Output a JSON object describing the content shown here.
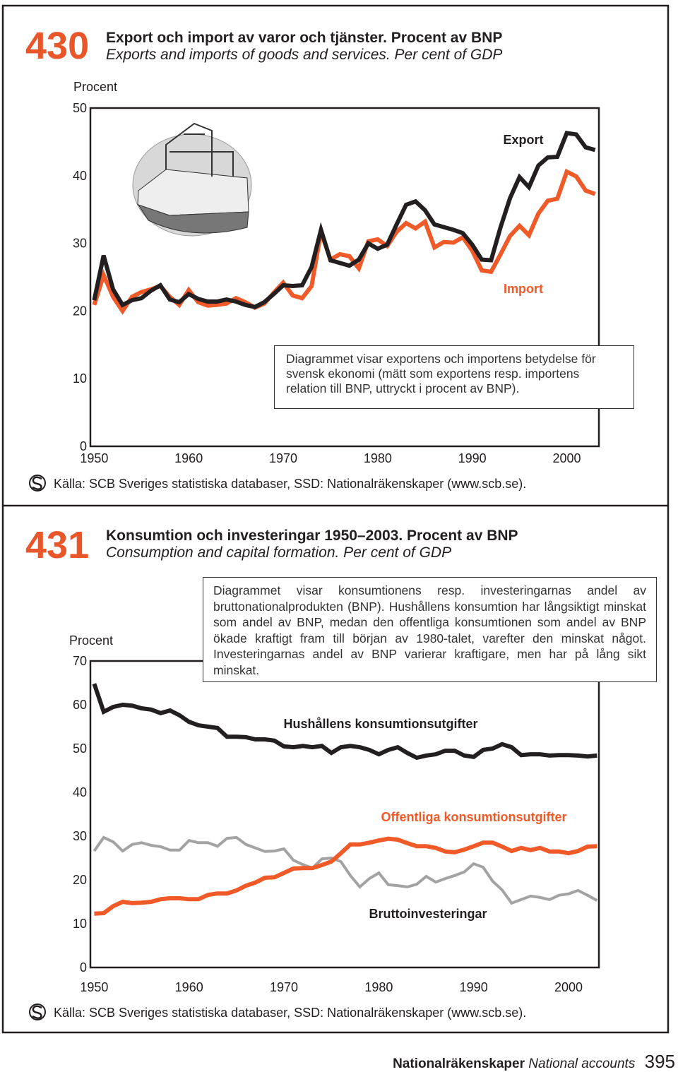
{
  "figures": [
    {
      "number": "430",
      "source": "Källa: SCB Sveriges statistiska databaser, SSD: Nationalräkenskaper (www.scb.se)."
    },
    {
      "number": "431",
      "source": "Källa: SCB Sveriges statistiska databaser, SSD: Nationalräkenskaper (www.scb.se)."
    }
  ],
  "chart_data": [
    {
      "type": "line",
      "title": "Export och import av varor och tjänster. Procent av BNP",
      "subtitle": "Exports and imports of goods and services. Per cent of GDP",
      "y_label": "Procent",
      "annotation": "Diagrammet visar exportens och importens betydelse för svensk ekonomi (mätt som exportens resp. importens relation till BNP, uttryckt i procent av BNP).",
      "x": [
        1950,
        1951,
        1952,
        1953,
        1954,
        1955,
        1956,
        1957,
        1958,
        1959,
        1960,
        1961,
        1962,
        1963,
        1964,
        1965,
        1966,
        1967,
        1968,
        1969,
        1970,
        1971,
        1972,
        1973,
        1974,
        1975,
        1976,
        1977,
        1978,
        1979,
        1980,
        1981,
        1982,
        1983,
        1984,
        1985,
        1986,
        1987,
        1988,
        1989,
        1990,
        1991,
        1992,
        1993,
        1994,
        1995,
        1996,
        1997,
        1998,
        1999,
        2000,
        2001,
        2002,
        2003
      ],
      "xlim": [
        1949.6,
        2003.4
      ],
      "xticks": [
        1950,
        1960,
        1970,
        1980,
        1990,
        2000
      ],
      "ylim": [
        0,
        50
      ],
      "yticks": [
        0,
        10,
        20,
        30,
        40,
        50
      ],
      "series": [
        {
          "name": "Export",
          "color": "#231f20",
          "values": [
            21.6,
            28.2,
            23.2,
            20.9,
            21.6,
            21.9,
            23.0,
            23.8,
            21.7,
            21.3,
            22.5,
            21.8,
            21.4,
            21.4,
            21.7,
            21.4,
            20.9,
            20.6,
            21.3,
            22.5,
            23.8,
            23.7,
            23.8,
            26.5,
            32.0,
            27.5,
            27.1,
            26.7,
            27.6,
            30.0,
            29.2,
            29.8,
            32.8,
            35.7,
            36.2,
            34.9,
            32.8,
            32.4,
            32.0,
            31.5,
            29.8,
            27.6,
            27.5,
            32.4,
            36.7,
            39.8,
            38.3,
            41.5,
            42.7,
            42.8,
            46.3,
            46.1,
            44.2,
            43.8
          ]
        },
        {
          "name": "Import",
          "color": "#f05a28",
          "values": [
            20.9,
            25.3,
            22.1,
            20.0,
            22.1,
            22.8,
            23.2,
            23.7,
            22.1,
            20.9,
            23.1,
            21.3,
            20.8,
            20.9,
            21.1,
            21.9,
            21.3,
            20.5,
            21.1,
            22.7,
            24.2,
            22.3,
            21.9,
            23.7,
            31.7,
            27.6,
            28.4,
            28.1,
            26.3,
            30.3,
            30.6,
            29.6,
            31.7,
            33.0,
            32.2,
            33.2,
            29.4,
            30.2,
            30.1,
            30.9,
            28.9,
            26.0,
            25.8,
            28.4,
            31.1,
            32.6,
            31.2,
            34.4,
            36.3,
            36.6,
            40.6,
            39.9,
            37.8,
            37.3
          ]
        }
      ]
    },
    {
      "type": "line",
      "title": "Konsumtion och investeringar 1950–2003. Procent av BNP",
      "subtitle": "Consumption and capital formation. Per cent of GDP",
      "y_label": "Procent",
      "annotation": "Diagrammet visar konsumtionens resp. investeringarnas andel av bruttonationalprodukten (BNP). Hushållens konsumtion har långsiktigt minskat som andel av BNP, medan den offentliga konsumtionen som andel av BNP ökade kraftigt fram till början av 1980-talet, varefter den minskat något. Investeringarnas andel av BNP varierar kraftigare, men har på lång sikt minskat.",
      "x": [
        1950,
        1951,
        1952,
        1953,
        1954,
        1955,
        1956,
        1957,
        1958,
        1959,
        1960,
        1961,
        1962,
        1963,
        1964,
        1965,
        1966,
        1967,
        1968,
        1969,
        1970,
        1971,
        1972,
        1973,
        1974,
        1975,
        1976,
        1977,
        1978,
        1979,
        1980,
        1981,
        1982,
        1983,
        1984,
        1985,
        1986,
        1987,
        1988,
        1989,
        1990,
        1991,
        1992,
        1993,
        1994,
        1995,
        1996,
        1997,
        1998,
        1999,
        2000,
        2001,
        2002,
        2003
      ],
      "xlim": [
        1949.6,
        2003.2
      ],
      "xticks": [
        1950,
        1960,
        1970,
        1980,
        1990,
        2000
      ],
      "ylim": [
        0,
        70
      ],
      "yticks": [
        0,
        10,
        20,
        30,
        40,
        50,
        60,
        70
      ],
      "series": [
        {
          "name": "Hushållens konsumtionsutgifter",
          "color": "#231f20",
          "values": [
            64.8,
            58.4,
            59.5,
            60.0,
            59.8,
            59.2,
            58.9,
            58.1,
            58.7,
            57.6,
            56.1,
            55.3,
            55.0,
            54.7,
            52.7,
            52.7,
            52.6,
            52.1,
            52.1,
            51.8,
            50.5,
            50.3,
            50.6,
            50.3,
            50.6,
            49.0,
            50.3,
            50.6,
            50.3,
            49.7,
            48.7,
            49.7,
            50.3,
            49.0,
            47.9,
            48.4,
            48.7,
            49.5,
            49.5,
            48.4,
            48.1,
            49.7,
            50.0,
            51.0,
            50.3,
            48.5,
            48.7,
            48.7,
            48.4,
            48.5,
            48.5,
            48.4,
            48.2,
            48.4
          ]
        },
        {
          "name": "Offentliga konsumtionsutgifter",
          "color": "#f05a28",
          "values": [
            12.3,
            12.4,
            14.0,
            15.0,
            14.7,
            14.8,
            15.0,
            15.6,
            15.8,
            15.8,
            15.6,
            15.6,
            16.6,
            16.9,
            16.9,
            17.6,
            18.7,
            19.4,
            20.5,
            20.6,
            21.6,
            22.6,
            22.7,
            22.7,
            23.4,
            24.2,
            26.1,
            28.1,
            28.1,
            28.5,
            29.0,
            29.4,
            29.2,
            28.4,
            27.7,
            27.7,
            27.3,
            26.5,
            26.3,
            26.9,
            27.7,
            28.5,
            28.5,
            27.6,
            26.6,
            27.3,
            26.8,
            27.3,
            26.5,
            26.5,
            26.1,
            26.6,
            27.6,
            27.7
          ]
        },
        {
          "name": "Bruttoinvesteringar",
          "color": "#a3a3a3",
          "values": [
            26.6,
            29.7,
            28.7,
            26.6,
            28.1,
            28.5,
            27.9,
            27.6,
            26.8,
            26.8,
            29.0,
            28.5,
            28.5,
            27.7,
            29.5,
            29.7,
            28.1,
            27.3,
            26.5,
            26.6,
            27.1,
            24.5,
            23.5,
            22.7,
            24.8,
            25.0,
            24.2,
            21.0,
            18.4,
            20.3,
            21.6,
            18.9,
            18.7,
            18.4,
            19.0,
            20.8,
            19.5,
            20.3,
            21.0,
            21.8,
            23.7,
            22.9,
            19.7,
            17.7,
            14.7,
            15.5,
            16.3,
            16.0,
            15.5,
            16.5,
            16.8,
            17.6,
            16.5,
            15.3
          ]
        }
      ]
    }
  ],
  "footer": {
    "section": "Nationalräkenskaper",
    "section_en": "National accounts",
    "page": "395"
  }
}
